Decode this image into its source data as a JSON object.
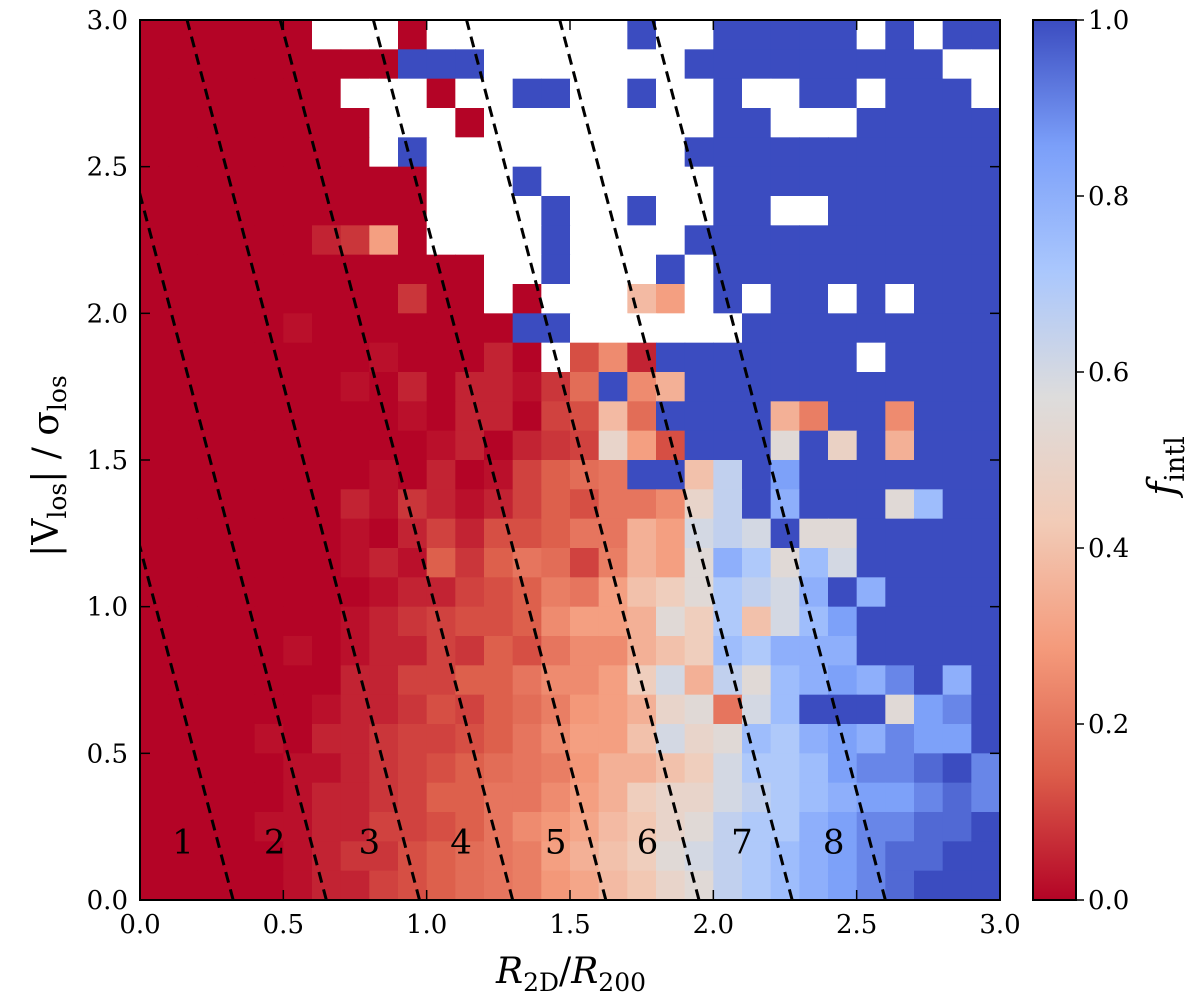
{
  "chart_data": {
    "type": "heatmap",
    "title": "",
    "xlabel": {
      "main": "R",
      "sub1": "2D",
      "slash": "/",
      "main2": "R",
      "sub2": "200"
    },
    "ylabel": {
      "open": "|V",
      "sub1": "los",
      "close": "| / σ",
      "sub2": "los"
    },
    "colorbar_label": {
      "main": "f",
      "sub": "intl"
    },
    "xlim": [
      0.0,
      3.0
    ],
    "ylim": [
      0.0,
      3.0
    ],
    "x_ticks": [
      "0.0",
      "0.5",
      "1.0",
      "1.5",
      "2.0",
      "2.5",
      "3.0"
    ],
    "y_ticks": [
      "0.0",
      "0.5",
      "1.0",
      "1.5",
      "2.0",
      "2.5",
      "3.0"
    ],
    "colorbar_ticks": [
      "0.0",
      "0.2",
      "0.4",
      "0.6",
      "0.8",
      "1.0"
    ],
    "colorbar_range": [
      0.0,
      1.0
    ],
    "colormap": "coolwarm_r",
    "colormap_stops": [
      "#b40426",
      "#dc5d4a",
      "#f49a7b",
      "#f2cbb7",
      "#dddcdc",
      "#aac7fd",
      "#7b9ff9",
      "#3b4cc0"
    ],
    "bins": 30,
    "empty_color": "#ffffff",
    "dividing_lines": {
      "slope": -3.7,
      "x_intercepts_at_y0": [
        0.325,
        0.65,
        0.975,
        1.3,
        1.625,
        1.95,
        2.275,
        2.6
      ],
      "style": "dashed",
      "color": "#000000"
    },
    "region_labels": [
      {
        "text": "1",
        "x": 0.15,
        "y": 0.2
      },
      {
        "text": "2",
        "x": 0.47,
        "y": 0.2
      },
      {
        "text": "3",
        "x": 0.8,
        "y": 0.2
      },
      {
        "text": "4",
        "x": 1.12,
        "y": 0.2
      },
      {
        "text": "5",
        "x": 1.45,
        "y": 0.2
      },
      {
        "text": "6",
        "x": 1.77,
        "y": 0.2
      },
      {
        "text": "7",
        "x": 2.1,
        "y": 0.2
      },
      {
        "text": "8",
        "x": 2.42,
        "y": 0.2
      }
    ],
    "grid_note": "30x30 grid of f_intl values; rows ordered from top (y=3.0) to bottom (y=0.0); null = empty (white) bin",
    "grid": [
      [
        0.0,
        0.0,
        0.0,
        0.0,
        0.0,
        0.0,
        null,
        null,
        null,
        0.0,
        null,
        null,
        null,
        null,
        null,
        null,
        null,
        1.0,
        null,
        null,
        1.0,
        1.0,
        1.0,
        1.0,
        1.0,
        null,
        1.0,
        null,
        1.0,
        1.0
      ],
      [
        0.0,
        0.0,
        0.0,
        0.0,
        0.0,
        0.0,
        0.0,
        0.0,
        0.0,
        1.0,
        1.0,
        1.0,
        null,
        null,
        null,
        null,
        null,
        null,
        null,
        1.0,
        1.0,
        1.0,
        1.0,
        1.0,
        1.0,
        1.0,
        1.0,
        1.0,
        null,
        null
      ],
      [
        0.0,
        0.0,
        0.0,
        0.0,
        0.0,
        0.0,
        0.0,
        null,
        null,
        null,
        0.0,
        null,
        null,
        1.0,
        1.0,
        null,
        null,
        1.0,
        null,
        null,
        1.0,
        null,
        null,
        1.0,
        1.0,
        null,
        1.0,
        1.0,
        1.0,
        null
      ],
      [
        0.0,
        0.0,
        0.0,
        0.0,
        0.0,
        0.0,
        0.0,
        0.0,
        null,
        null,
        null,
        0.0,
        null,
        null,
        null,
        null,
        null,
        null,
        null,
        null,
        1.0,
        1.0,
        null,
        null,
        null,
        1.0,
        1.0,
        1.0,
        1.0,
        1.0
      ],
      [
        0.0,
        0.0,
        0.0,
        0.0,
        0.0,
        0.0,
        0.0,
        0.0,
        null,
        1.0,
        null,
        null,
        null,
        null,
        null,
        null,
        null,
        null,
        null,
        1.0,
        1.0,
        1.0,
        1.0,
        1.0,
        1.0,
        1.0,
        1.0,
        1.0,
        1.0,
        1.0
      ],
      [
        0.0,
        0.0,
        0.0,
        0.0,
        0.0,
        0.0,
        0.0,
        0.0,
        0.0,
        0.0,
        null,
        null,
        null,
        1.0,
        null,
        null,
        null,
        null,
        null,
        null,
        1.0,
        1.0,
        1.0,
        1.0,
        1.0,
        1.0,
        1.0,
        1.0,
        1.0,
        1.0
      ],
      [
        0.0,
        0.0,
        0.0,
        0.0,
        0.0,
        0.0,
        0.0,
        0.0,
        0.0,
        0.0,
        null,
        null,
        null,
        null,
        1.0,
        null,
        null,
        1.0,
        null,
        null,
        1.0,
        1.0,
        null,
        null,
        1.0,
        1.0,
        1.0,
        1.0,
        1.0,
        1.0
      ],
      [
        0.0,
        0.0,
        0.0,
        0.0,
        0.0,
        0.0,
        0.05,
        0.08,
        0.3,
        0.0,
        null,
        null,
        null,
        null,
        1.0,
        null,
        null,
        null,
        null,
        1.0,
        1.0,
        1.0,
        1.0,
        1.0,
        1.0,
        1.0,
        1.0,
        1.0,
        1.0,
        1.0
      ],
      [
        0.0,
        0.0,
        0.0,
        0.0,
        0.0,
        0.0,
        0.0,
        0.0,
        0.0,
        0.0,
        0.0,
        0.0,
        null,
        null,
        1.0,
        null,
        null,
        null,
        1.0,
        null,
        1.0,
        1.0,
        1.0,
        1.0,
        1.0,
        1.0,
        1.0,
        1.0,
        1.0,
        1.0
      ],
      [
        0.0,
        0.0,
        0.0,
        0.0,
        0.0,
        0.0,
        0.0,
        0.0,
        0.0,
        0.08,
        0.0,
        0.0,
        null,
        0.0,
        null,
        null,
        null,
        0.38,
        0.3,
        null,
        1.0,
        null,
        1.0,
        1.0,
        null,
        1.0,
        null,
        1.0,
        1.0,
        1.0
      ],
      [
        0.0,
        0.0,
        0.0,
        0.0,
        0.0,
        0.02,
        0.0,
        0.0,
        0.0,
        0.0,
        0.0,
        0.0,
        0.0,
        1.0,
        1.0,
        null,
        null,
        null,
        null,
        null,
        null,
        1.0,
        1.0,
        1.0,
        1.0,
        1.0,
        1.0,
        1.0,
        1.0,
        1.0
      ],
      [
        0.0,
        0.0,
        0.0,
        0.0,
        0.0,
        0.0,
        0.0,
        0.0,
        0.02,
        0.0,
        0.0,
        0.0,
        0.05,
        0.0,
        null,
        0.12,
        0.25,
        0.05,
        1.0,
        1.0,
        1.0,
        1.0,
        1.0,
        1.0,
        1.0,
        null,
        1.0,
        1.0,
        1.0,
        1.0
      ],
      [
        0.0,
        0.0,
        0.0,
        0.0,
        0.0,
        0.0,
        0.0,
        0.02,
        0.0,
        0.05,
        0.0,
        0.05,
        0.05,
        0.02,
        0.08,
        0.18,
        1.0,
        0.25,
        0.35,
        1.0,
        1.0,
        1.0,
        1.0,
        1.0,
        1.0,
        1.0,
        1.0,
        1.0,
        1.0,
        1.0
      ],
      [
        0.0,
        0.0,
        0.0,
        0.0,
        0.0,
        0.0,
        0.0,
        0.0,
        0.0,
        0.02,
        0.0,
        0.05,
        0.05,
        0.0,
        0.1,
        0.12,
        0.38,
        0.18,
        1.0,
        1.0,
        1.0,
        1.0,
        0.35,
        0.22,
        1.0,
        1.0,
        0.25,
        1.0,
        1.0,
        1.0
      ],
      [
        0.0,
        0.0,
        0.0,
        0.0,
        0.0,
        0.0,
        0.0,
        0.0,
        0.0,
        0.0,
        0.02,
        0.05,
        0.0,
        0.05,
        0.08,
        0.1,
        0.5,
        0.3,
        0.12,
        1.0,
        1.0,
        1.0,
        0.55,
        1.0,
        0.48,
        1.0,
        0.35,
        1.0,
        1.0,
        1.0
      ],
      [
        0.0,
        0.0,
        0.0,
        0.0,
        0.0,
        0.0,
        0.0,
        0.0,
        0.02,
        0.0,
        0.05,
        0.0,
        0.02,
        0.1,
        0.15,
        0.18,
        0.2,
        1.0,
        1.0,
        0.4,
        0.65,
        1.0,
        0.85,
        1.0,
        1.0,
        1.0,
        1.0,
        1.0,
        1.0,
        1.0
      ],
      [
        0.0,
        0.0,
        0.0,
        0.0,
        0.0,
        0.0,
        0.0,
        0.05,
        0.02,
        0.08,
        0.05,
        0.02,
        0.05,
        0.1,
        0.15,
        0.12,
        0.2,
        0.2,
        0.25,
        0.5,
        0.65,
        1.0,
        0.8,
        1.0,
        1.0,
        1.0,
        0.55,
        0.75,
        1.0,
        1.0
      ],
      [
        0.0,
        0.0,
        0.0,
        0.0,
        0.0,
        0.0,
        0.0,
        0.02,
        0.0,
        0.05,
        0.1,
        0.05,
        0.12,
        0.12,
        0.15,
        0.2,
        0.2,
        0.35,
        0.3,
        0.6,
        0.65,
        0.6,
        1.0,
        0.55,
        0.55,
        1.0,
        1.0,
        1.0,
        1.0,
        1.0
      ],
      [
        0.0,
        0.0,
        0.0,
        0.0,
        0.0,
        0.0,
        0.0,
        0.02,
        0.05,
        0.02,
        0.15,
        0.08,
        0.15,
        0.2,
        0.18,
        0.1,
        0.22,
        0.35,
        0.3,
        0.55,
        0.8,
        0.7,
        0.55,
        0.75,
        0.6,
        1.0,
        1.0,
        1.0,
        1.0,
        1.0
      ],
      [
        0.0,
        0.0,
        0.0,
        0.0,
        0.0,
        0.0,
        0.0,
        0.0,
        0.02,
        0.05,
        0.05,
        0.1,
        0.12,
        0.15,
        0.22,
        0.2,
        0.3,
        0.4,
        0.45,
        0.55,
        0.7,
        0.65,
        0.6,
        0.8,
        1.0,
        0.8,
        1.0,
        1.0,
        1.0,
        1.0
      ],
      [
        0.0,
        0.0,
        0.0,
        0.0,
        0.0,
        0.0,
        0.0,
        0.02,
        0.05,
        0.08,
        0.1,
        0.12,
        0.12,
        0.15,
        0.25,
        0.3,
        0.3,
        0.35,
        0.55,
        0.45,
        0.7,
        0.4,
        0.6,
        0.75,
        0.85,
        1.0,
        1.0,
        1.0,
        1.0,
        1.0
      ],
      [
        0.0,
        0.0,
        0.0,
        0.0,
        0.0,
        0.02,
        0.0,
        0.02,
        0.05,
        0.05,
        0.1,
        0.08,
        0.15,
        0.12,
        0.2,
        0.25,
        0.25,
        0.35,
        0.4,
        0.45,
        0.75,
        0.7,
        0.8,
        0.8,
        0.8,
        1.0,
        1.0,
        1.0,
        1.0,
        1.0
      ],
      [
        0.0,
        0.0,
        0.0,
        0.0,
        0.0,
        0.0,
        0.0,
        0.05,
        0.05,
        0.1,
        0.1,
        0.15,
        0.15,
        0.2,
        0.25,
        0.25,
        0.3,
        0.45,
        0.6,
        0.35,
        0.65,
        0.55,
        0.75,
        0.8,
        0.85,
        0.8,
        0.9,
        1.0,
        0.8,
        1.0
      ],
      [
        0.0,
        0.0,
        0.0,
        0.0,
        0.0,
        0.0,
        0.02,
        0.05,
        0.05,
        0.08,
        0.12,
        0.1,
        0.15,
        0.18,
        0.22,
        0.28,
        0.3,
        0.35,
        0.5,
        0.55,
        0.2,
        0.6,
        0.75,
        1.0,
        1.0,
        1.0,
        0.55,
        0.85,
        0.9,
        1.0
      ],
      [
        0.0,
        0.0,
        0.0,
        0.0,
        0.02,
        0.0,
        0.05,
        0.05,
        0.08,
        0.1,
        0.1,
        0.12,
        0.15,
        0.2,
        0.25,
        0.3,
        0.3,
        0.4,
        0.6,
        0.5,
        0.55,
        0.75,
        0.7,
        0.8,
        0.85,
        0.8,
        0.9,
        0.85,
        0.85,
        1.0
      ],
      [
        0.0,
        0.0,
        0.0,
        0.0,
        0.0,
        0.02,
        0.02,
        0.05,
        0.08,
        0.1,
        0.12,
        0.15,
        0.18,
        0.2,
        0.22,
        0.28,
        0.35,
        0.35,
        0.4,
        0.45,
        0.6,
        0.7,
        0.7,
        0.75,
        0.85,
        0.9,
        0.9,
        0.95,
        1.0,
        0.9
      ],
      [
        0.0,
        0.0,
        0.0,
        0.0,
        0.0,
        0.02,
        0.05,
        0.05,
        0.08,
        0.1,
        0.15,
        0.15,
        0.2,
        0.2,
        0.25,
        0.3,
        0.35,
        0.45,
        0.5,
        0.5,
        0.6,
        0.65,
        0.7,
        0.75,
        0.8,
        0.85,
        0.85,
        0.9,
        0.95,
        0.9
      ],
      [
        0.0,
        0.0,
        0.0,
        0.0,
        0.02,
        0.02,
        0.05,
        0.05,
        0.1,
        0.1,
        0.12,
        0.15,
        0.2,
        0.25,
        0.28,
        0.32,
        0.38,
        0.42,
        0.5,
        0.55,
        0.65,
        0.7,
        0.7,
        0.8,
        0.85,
        0.9,
        0.9,
        0.95,
        0.95,
        1.0
      ],
      [
        0.0,
        0.0,
        0.0,
        0.0,
        0.0,
        0.02,
        0.05,
        0.08,
        0.08,
        0.12,
        0.15,
        0.18,
        0.2,
        0.22,
        0.3,
        0.35,
        0.4,
        0.45,
        0.55,
        0.6,
        0.65,
        0.7,
        0.75,
        0.8,
        0.85,
        0.9,
        0.95,
        0.95,
        1.0,
        1.0
      ],
      [
        0.0,
        0.0,
        0.0,
        0.0,
        0.0,
        0.02,
        0.05,
        0.05,
        0.1,
        0.12,
        0.15,
        0.18,
        0.2,
        0.22,
        0.28,
        0.32,
        0.38,
        0.42,
        0.5,
        0.55,
        0.65,
        0.7,
        0.75,
        0.8,
        0.85,
        0.9,
        0.95,
        1.0,
        1.0,
        1.0
      ]
    ]
  }
}
